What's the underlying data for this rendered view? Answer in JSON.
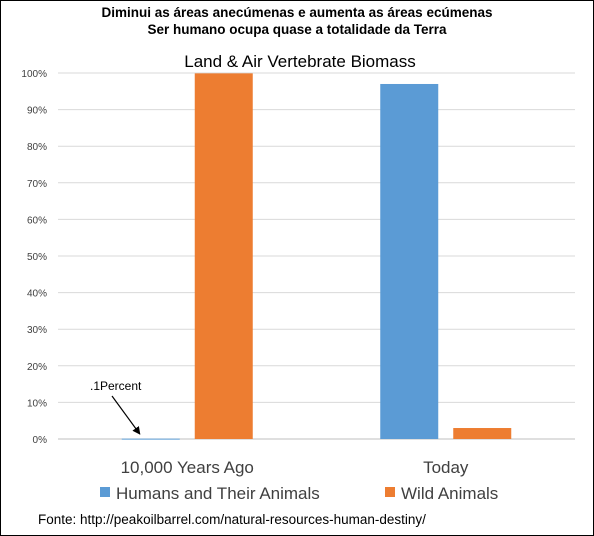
{
  "header": {
    "line1": "Diminui as áreas anecúmenas e aumenta as áreas ecúmenas",
    "line2": "Ser humano ocupa quase a totalidade da Terra"
  },
  "source_text": "Fonte: http://peakoilbarrel.com/natural-resources-human-destiny/",
  "chart_data": {
    "type": "bar",
    "title": "Land & Air Vertebrate  Biomass",
    "categories": [
      "10,000 Years Ago",
      "Today"
    ],
    "series": [
      {
        "name": "Humans and Their Animals",
        "color": "#5b9bd5",
        "values": [
          0.1,
          97
        ]
      },
      {
        "name": "Wild Animals",
        "color": "#ed7d31",
        "values": [
          99.9,
          3
        ]
      }
    ],
    "ylim": [
      0,
      100
    ],
    "yticks": [
      "0%",
      "10%",
      "20%",
      "30%",
      "40%",
      "50%",
      "60%",
      "70%",
      "80%",
      "90%",
      "100%"
    ],
    "grid": true,
    "legend_position": "bottom",
    "annotation": {
      "text": ".1Percent",
      "category_index": 0,
      "series_index": 0
    }
  }
}
